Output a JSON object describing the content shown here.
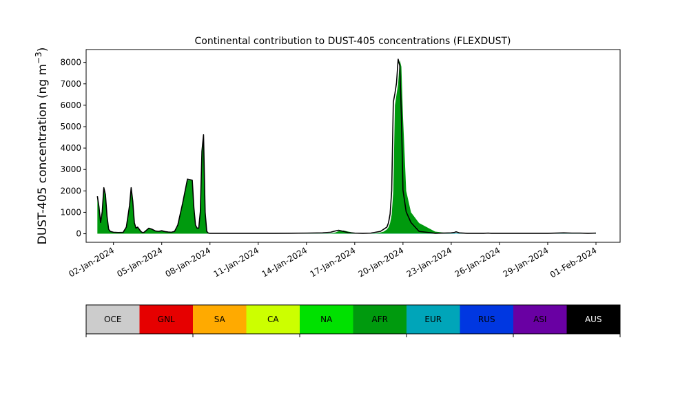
{
  "chart_data": {
    "type": "area",
    "title": "Continental contribution to DUST-405 concentrations (FLEXDUST)",
    "ylabel": "DUST-405 concentration (ng m",
    "ylabel_sup": "−3",
    "ylabel_close": ")",
    "xlabel": "",
    "ylim": [
      -400,
      8600
    ],
    "xlim": [
      -0.7,
      32.5
    ],
    "yticks": [
      0,
      1000,
      2000,
      3000,
      4000,
      5000,
      6000,
      7000,
      8000
    ],
    "xticks": [
      {
        "day": 1,
        "label": "02-Jan-2024"
      },
      {
        "day": 4,
        "label": "05-Jan-2024"
      },
      {
        "day": 7,
        "label": "08-Jan-2024"
      },
      {
        "day": 10,
        "label": "11-Jan-2024"
      },
      {
        "day": 13,
        "label": "14-Jan-2024"
      },
      {
        "day": 16,
        "label": "17-Jan-2024"
      },
      {
        "day": 19,
        "label": "20-Jan-2024"
      },
      {
        "day": 22,
        "label": "23-Jan-2024"
      },
      {
        "day": 25,
        "label": "26-Jan-2024"
      },
      {
        "day": 28,
        "label": "29-Jan-2024"
      },
      {
        "day": 31,
        "label": "01-Feb-2024"
      }
    ],
    "x_start_date": "2024-01-01",
    "series": [
      {
        "name": "AFR",
        "color": "#009a0e",
        "x": [
          0.0,
          0.1,
          0.2,
          0.3,
          0.4,
          0.5,
          0.6,
          0.7,
          0.8,
          0.9,
          1.0,
          1.3,
          1.6,
          1.8,
          2.0,
          2.1,
          2.2,
          2.3,
          2.4,
          2.5,
          2.6,
          2.7,
          2.8,
          2.9,
          3.0,
          3.2,
          3.4,
          3.6,
          3.8,
          4.0,
          4.2,
          4.4,
          4.6,
          4.8,
          5.0,
          5.3,
          5.6,
          5.9,
          6.0,
          6.1,
          6.2,
          6.3,
          6.4,
          6.5,
          6.6,
          6.7,
          6.8,
          6.9,
          7.0,
          7.1,
          7.2,
          7.3,
          7.4,
          7.5,
          7.6,
          7.7,
          7.8,
          8.0,
          8.5,
          9.0,
          10.0,
          11.0,
          12.0,
          13.0,
          14.0,
          14.5,
          14.8,
          15.0,
          15.3,
          15.6,
          16.0,
          16.5,
          17.0,
          17.3,
          17.6,
          17.8,
          18.0,
          18.1,
          18.2,
          18.3,
          18.4,
          18.5,
          18.6,
          18.7,
          18.8,
          18.9,
          19.0,
          19.2,
          19.5,
          20.0,
          21.0,
          22.0,
          22.3,
          23.0,
          24.0,
          24.3,
          24.6,
          25.0,
          26.0,
          27.0,
          28.0,
          29.0,
          30.0,
          30.5,
          31.0
        ],
        "values": [
          1700,
          1200,
          500,
          1000,
          2100,
          1800,
          800,
          200,
          100,
          80,
          60,
          50,
          60,
          300,
          1300,
          2100,
          1500,
          500,
          250,
          300,
          200,
          100,
          50,
          60,
          120,
          250,
          200,
          120,
          100,
          130,
          90,
          70,
          60,
          100,
          400,
          1400,
          2500,
          2500,
          1200,
          400,
          250,
          250,
          1000,
          3800,
          4600,
          1000,
          100,
          20,
          10,
          10,
          10,
          10,
          10,
          10,
          10,
          10,
          10,
          10,
          10,
          10,
          10,
          10,
          10,
          10,
          10,
          20,
          60,
          120,
          150,
          100,
          40,
          20,
          10,
          20,
          60,
          100,
          200,
          300,
          500,
          900,
          2000,
          6000,
          6500,
          7000,
          8100,
          7800,
          5500,
          2000,
          1000,
          500,
          100,
          10,
          10,
          10,
          10,
          10,
          10,
          10,
          10,
          10,
          10,
          10,
          10,
          10,
          10
        ]
      },
      {
        "name": "EUR",
        "color": "#00a5b9",
        "x": [
          0,
          10,
          15,
          20,
          21,
          22,
          22.3,
          22.6,
          23,
          25,
          28,
          30,
          31
        ],
        "values": [
          0,
          5,
          5,
          8,
          10,
          15,
          30,
          10,
          10,
          10,
          15,
          10,
          10
        ]
      },
      {
        "name": "AUS",
        "color": "#000000",
        "x": [
          0.0,
          0.1,
          0.2,
          0.3,
          0.4,
          0.5,
          0.6,
          0.7,
          0.8,
          0.9,
          1.0,
          1.3,
          1.6,
          1.8,
          2.0,
          2.1,
          2.2,
          2.3,
          2.4,
          2.5,
          2.6,
          2.7,
          2.8,
          2.9,
          3.0,
          3.2,
          3.4,
          3.6,
          3.8,
          4.0,
          4.2,
          4.4,
          4.6,
          4.8,
          5.0,
          5.3,
          5.6,
          5.9,
          6.0,
          6.1,
          6.2,
          6.3,
          6.4,
          6.5,
          6.6,
          6.7,
          6.8,
          6.9,
          7.0,
          7.5,
          8.0,
          9.0,
          10.0,
          11.0,
          12.0,
          13.0,
          14.0,
          14.5,
          14.8,
          15.0,
          15.3,
          15.6,
          16.0,
          16.5,
          17.0,
          17.3,
          17.6,
          17.8,
          18.0,
          18.1,
          18.2,
          18.3,
          18.4,
          18.5,
          18.6,
          18.7,
          18.8,
          18.9,
          19.0,
          19.2,
          19.5,
          20.0,
          21.0,
          22.0,
          22.2,
          22.3,
          22.5,
          23.0,
          24.0,
          24.3,
          24.5,
          24.8,
          25.0,
          26.0,
          27.0,
          28.0,
          29.0,
          29.5,
          30.0,
          30.5,
          31.0
        ],
        "values": [
          1750,
          1250,
          520,
          1020,
          2150,
          1830,
          820,
          210,
          110,
          90,
          70,
          55,
          65,
          310,
          1320,
          2150,
          1520,
          510,
          260,
          310,
          210,
          110,
          55,
          65,
          130,
          260,
          210,
          130,
          110,
          140,
          100,
          80,
          70,
          110,
          410,
          1420,
          2550,
          2500,
          1210,
          410,
          260,
          260,
          1020,
          3850,
          4620,
          1010,
          110,
          30,
          20,
          20,
          20,
          20,
          20,
          20,
          25,
          30,
          40,
          70,
          130,
          160,
          110,
          50,
          30,
          20,
          30,
          70,
          110,
          210,
          310,
          510,
          920,
          2020,
          6150,
          6550,
          7050,
          8150,
          7850,
          5550,
          2030,
          1020,
          520,
          110,
          20,
          40,
          60,
          90,
          40,
          20,
          20,
          30,
          20,
          20,
          20,
          20,
          20,
          20,
          40,
          30,
          30,
          20,
          30
        ]
      }
    ],
    "colorbar": [
      {
        "label": "OCE",
        "color": "#cccccc"
      },
      {
        "label": "GNL",
        "color": "#e60000"
      },
      {
        "label": "SA",
        "color": "#ffaa00"
      },
      {
        "label": "CA",
        "color": "#ccff00"
      },
      {
        "label": "NA",
        "color": "#00e100"
      },
      {
        "label": "AFR",
        "color": "#009a0e"
      },
      {
        "label": "EUR",
        "color": "#00a5b9"
      },
      {
        "label": "RUS",
        "color": "#0037e1"
      },
      {
        "label": "ASI",
        "color": "#6900a3"
      },
      {
        "label": "AUS",
        "color": "#000000"
      }
    ],
    "grid": false
  }
}
